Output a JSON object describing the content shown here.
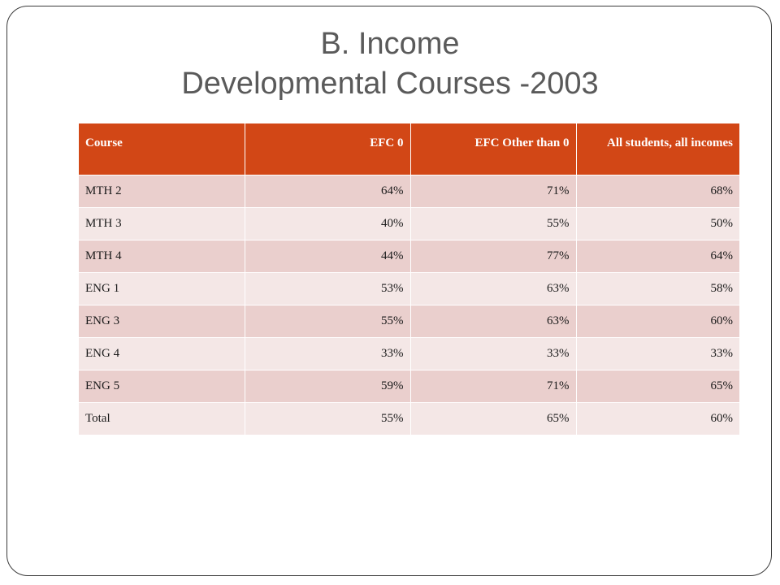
{
  "slide": {
    "title_line1": "B. Income",
    "title_line2": "Developmental Courses -2003"
  },
  "table": {
    "headers": [
      "Course",
      "EFC 0",
      "EFC Other than 0",
      "All students, all incomes"
    ],
    "rows": [
      [
        "MTH 2",
        "64%",
        "71%",
        "68%"
      ],
      [
        "MTH 3",
        "40%",
        "55%",
        "50%"
      ],
      [
        "MTH 4",
        "44%",
        "77%",
        "64%"
      ],
      [
        "ENG 1",
        "53%",
        "63%",
        "58%"
      ],
      [
        "ENG 3",
        "55%",
        "63%",
        "60%"
      ],
      [
        "ENG 4",
        "33%",
        "33%",
        "33%"
      ],
      [
        "ENG 5",
        "59%",
        "71%",
        "65%"
      ],
      [
        "Total",
        "55%",
        "65%",
        "60%"
      ]
    ]
  },
  "colors": {
    "header_bg": "#d24716",
    "row_odd_bg": "#eacfcd",
    "row_even_bg": "#f4e7e6",
    "title_text": "#5a5a5a"
  }
}
